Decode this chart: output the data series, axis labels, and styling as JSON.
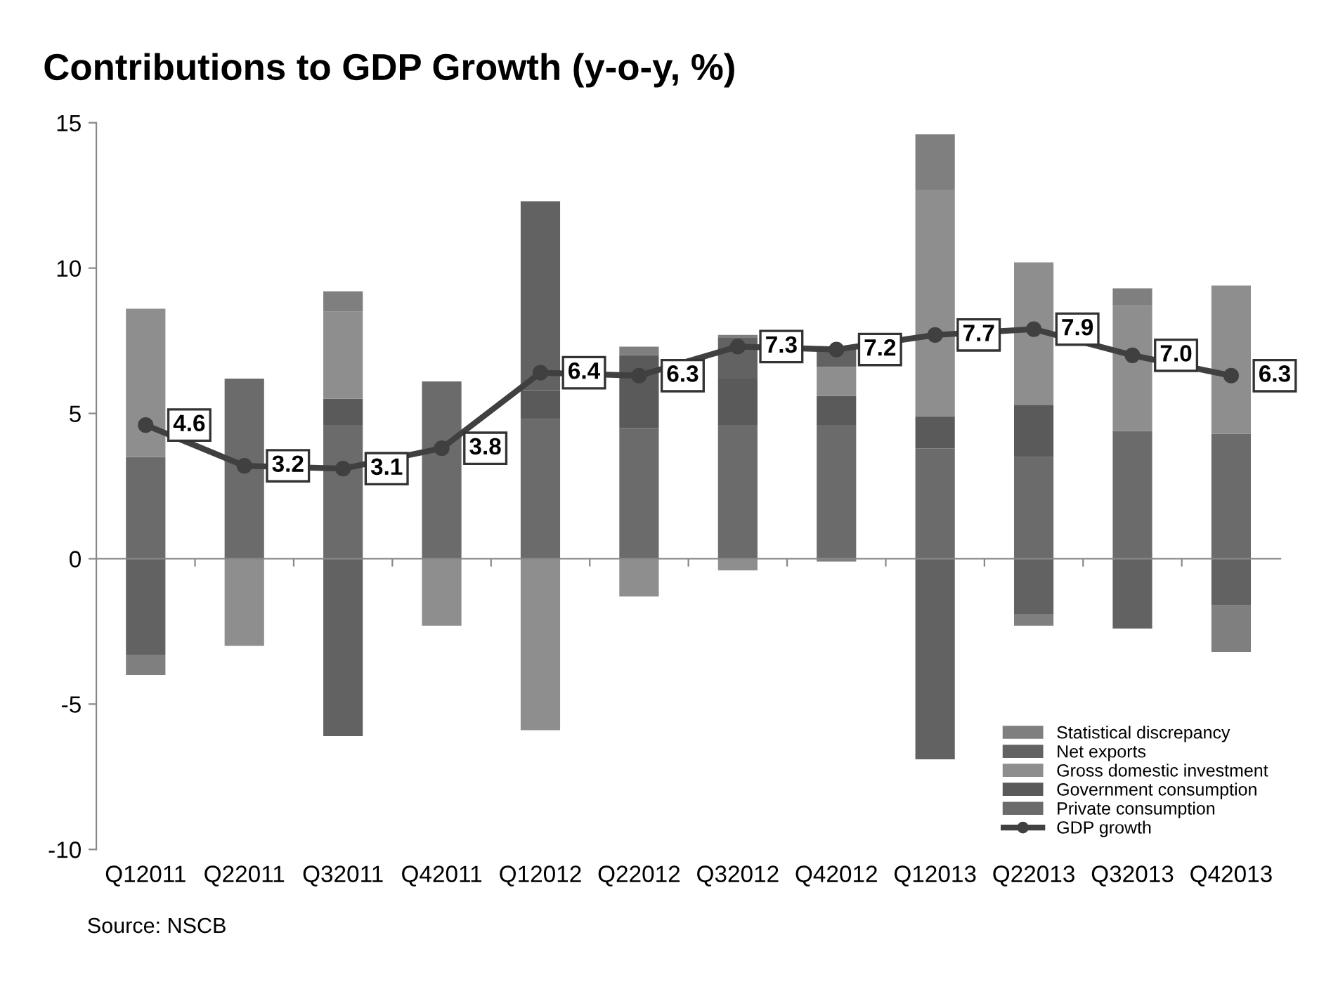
{
  "chart_data": {
    "type": "bar",
    "stacked": true,
    "title": "Contributions to GDP Growth (y-o-y, %)",
    "categories": [
      "Q12011",
      "Q22011",
      "Q32011",
      "Q42011",
      "Q12012",
      "Q22012",
      "Q32012",
      "Q42012",
      "Q12013",
      "Q22013",
      "Q32013",
      "Q42013"
    ],
    "series": [
      {
        "name": "Private consumption",
        "color": "#6b6b6b",
        "values": [
          3.5,
          6.2,
          4.6,
          6.1,
          4.8,
          4.5,
          4.6,
          4.6,
          3.8,
          3.5,
          4.4,
          4.3
        ]
      },
      {
        "name": "Government consumption",
        "color": "#5a5a5a",
        "values": [
          null,
          null,
          0.9,
          null,
          1.0,
          2.5,
          1.6,
          1.0,
          1.1,
          1.8,
          null,
          null
        ]
      },
      {
        "name": "Gross domestic investment",
        "color": "#8e8e8e",
        "values": [
          5.1,
          -3.0,
          3.0,
          -2.3,
          -5.9,
          -1.3,
          -0.4,
          1.0,
          7.8,
          4.9,
          4.3,
          5.1
        ]
      },
      {
        "name": "Net exports",
        "color": "#626262",
        "values": [
          -3.3,
          null,
          -6.1,
          null,
          6.5,
          null,
          1.4,
          0.7,
          -6.9,
          -1.9,
          -2.4,
          -1.6
        ]
      },
      {
        "name": "Statistical discrepancy",
        "color": "#7f7f7f",
        "values": [
          -0.7,
          null,
          0.7,
          null,
          null,
          0.3,
          0.1,
          -0.1,
          1.9,
          -0.4,
          0.6,
          -1.6
        ]
      },
      {
        "name": "GDP growth",
        "type": "line",
        "color": "#404040",
        "marker": "circle",
        "values": [
          4.6,
          3.2,
          3.1,
          3.8,
          6.4,
          6.3,
          7.3,
          7.2,
          7.7,
          7.9,
          7.0,
          6.3
        ],
        "value_labels": [
          "4.6",
          "3.2",
          "3.1",
          "3.8",
          "6.4",
          "6.3",
          "7.3",
          "7.2",
          "7.7",
          "7.9",
          "7.0",
          "6.3"
        ]
      }
    ],
    "ylim": [
      -10,
      15
    ],
    "yticks": [
      -10,
      -5,
      0,
      5,
      10,
      15
    ],
    "legend": "bottom right",
    "annotations": [
      "Source: NSCB"
    ]
  }
}
